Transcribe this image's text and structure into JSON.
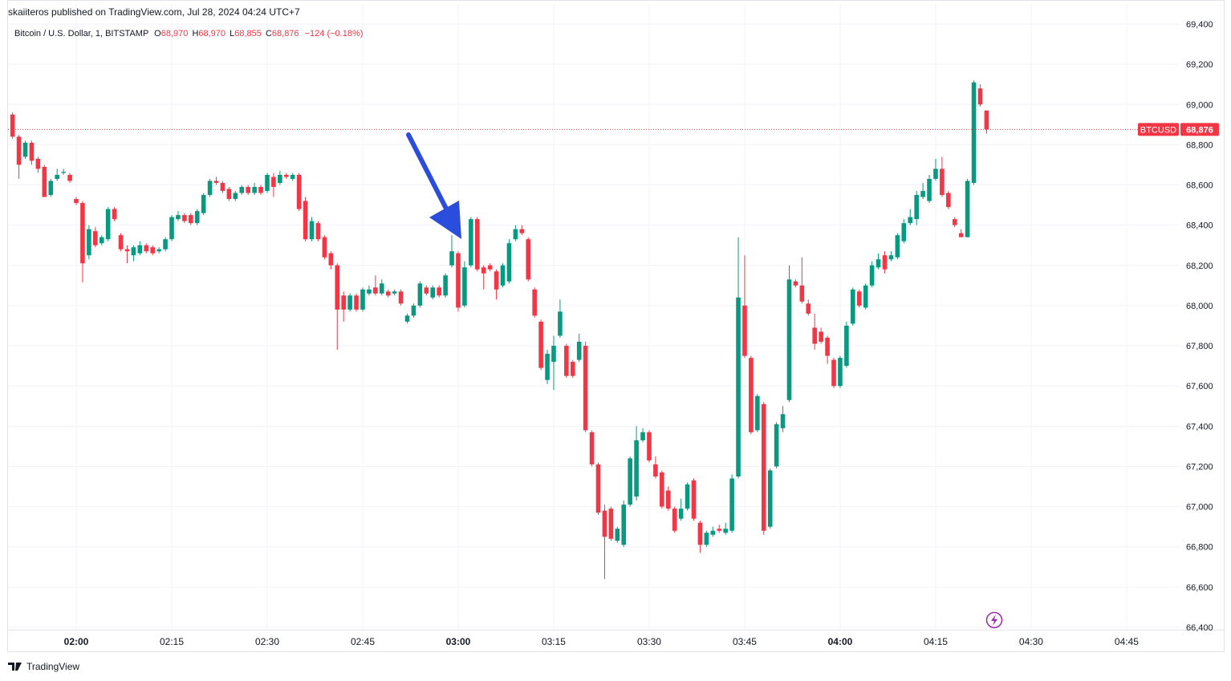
{
  "header": {
    "published": "skaiiteros published on TradingView.com, Jul 28, 2024 04:24 UTC+7"
  },
  "chart_data": {
    "type": "candlestick",
    "symbol": "Bitcoin / U.S. Dollar, 1, BITSTAMP",
    "ohlc_legend": [
      {
        "label": "O",
        "value": "68,970"
      },
      {
        "label": "H",
        "value": "68,970"
      },
      {
        "label": "L",
        "value": "68,855"
      },
      {
        "label": "C",
        "value": "68,876"
      }
    ],
    "change": "−124 (−0.18%)",
    "x": [
      "01:50",
      "01:51",
      "01:52",
      "01:53",
      "01:54",
      "01:55",
      "01:56",
      "01:57",
      "01:58",
      "01:59",
      "02:00",
      "02:01",
      "02:02",
      "02:03",
      "02:04",
      "02:05",
      "02:06",
      "02:07",
      "02:08",
      "02:09",
      "02:10",
      "02:11",
      "02:12",
      "02:13",
      "02:14",
      "02:15",
      "02:16",
      "02:17",
      "02:18",
      "02:19",
      "02:20",
      "02:21",
      "02:22",
      "02:23",
      "02:24",
      "02:25",
      "02:26",
      "02:27",
      "02:28",
      "02:29",
      "02:30",
      "02:31",
      "02:32",
      "02:33",
      "02:34",
      "02:35",
      "02:36",
      "02:37",
      "02:38",
      "02:39",
      "02:40",
      "02:41",
      "02:42",
      "02:43",
      "02:44",
      "02:45",
      "02:46",
      "02:47",
      "02:48",
      "02:49",
      "02:50",
      "02:51",
      "02:52",
      "02:53",
      "02:54",
      "02:55",
      "02:56",
      "02:57",
      "02:58",
      "02:59",
      "03:00",
      "03:01",
      "03:02",
      "03:03",
      "03:04",
      "03:05",
      "03:06",
      "03:07",
      "03:08",
      "03:09",
      "03:10",
      "03:11",
      "03:12",
      "03:13",
      "03:14",
      "03:15",
      "03:16",
      "03:17",
      "03:18",
      "03:19",
      "03:20",
      "03:21",
      "03:22",
      "03:23",
      "03:24",
      "03:25",
      "03:26",
      "03:27",
      "03:28",
      "03:29",
      "03:30",
      "03:31",
      "03:32",
      "03:33",
      "03:34",
      "03:35",
      "03:36",
      "03:37",
      "03:38",
      "03:39",
      "03:40",
      "03:41",
      "03:42",
      "03:43",
      "03:44",
      "03:45",
      "03:46",
      "03:47",
      "03:48",
      "03:49",
      "03:50",
      "03:51",
      "03:52",
      "03:53",
      "03:54",
      "03:55",
      "03:56",
      "03:57",
      "03:58",
      "03:59",
      "04:00",
      "04:01",
      "04:02",
      "04:03",
      "04:04",
      "04:05",
      "04:06",
      "04:07",
      "04:08",
      "04:09",
      "04:10",
      "04:11",
      "04:12",
      "04:13",
      "04:14",
      "04:15",
      "04:16",
      "04:17",
      "04:18",
      "04:19",
      "04:20",
      "04:21",
      "04:22",
      "04:23"
    ],
    "open": [
      68950,
      68840,
      68740,
      68810,
      68730,
      68690,
      68550,
      68630,
      68660,
      68650,
      68530,
      68510,
      68250,
      68370,
      68310,
      68330,
      68480,
      68350,
      68280,
      68250,
      68260,
      68300,
      68290,
      68270,
      68280,
      68330,
      68430,
      68450,
      68450,
      68410,
      68460,
      68550,
      68620,
      68610,
      68580,
      68530,
      68560,
      68590,
      68560,
      68590,
      68570,
      68640,
      68610,
      68650,
      68630,
      68650,
      68520,
      68330,
      68410,
      68340,
      68260,
      68200,
      68050,
      67980,
      68050,
      67980,
      68060,
      68090,
      68060,
      68070,
      68060,
      68070,
      67920,
      67950,
      68000,
      68090,
      68040,
      68090,
      68050,
      68200,
      68260,
      68000,
      68200,
      68430,
      68190,
      68200,
      68170,
      68100,
      68120,
      68330,
      68380,
      68330,
      68080,
      67920,
      67630,
      67720,
      67850,
      67800,
      67720,
      67730,
      67800,
      67370,
      67210,
      66980,
      66990,
      66830,
      66810,
      67010,
      67050,
      67330,
      67370,
      67210,
      67170,
      67080,
      66990,
      66940,
      66990,
      67130,
      66920,
      66810,
      66860,
      66890,
      66870,
      66880,
      67150,
      68000,
      67740,
      67380,
      67510,
      66900,
      67200,
      67390,
      67530,
      68120,
      68100,
      68010,
      67890,
      67870,
      67840,
      67730,
      67600,
      67700,
      67910,
      68070,
      67990,
      68100,
      68190,
      68250,
      68230,
      68240,
      68320,
      68410,
      68430,
      68540,
      68520,
      68630,
      68680,
      68560,
      68430,
      68360,
      68340,
      68610,
      69080,
      68970
    ],
    "high": [
      68960,
      68850,
      68820,
      68820,
      68740,
      68700,
      68630,
      68680,
      68680,
      68660,
      68540,
      68520,
      68400,
      68390,
      68350,
      68490,
      68490,
      68360,
      68300,
      68300,
      68320,
      68310,
      68300,
      68290,
      68340,
      68450,
      68470,
      68460,
      68460,
      68480,
      68560,
      68630,
      68640,
      68620,
      68590,
      68570,
      68600,
      68600,
      68610,
      68600,
      68660,
      68660,
      68670,
      68660,
      68660,
      68660,
      68540,
      68440,
      68420,
      68350,
      68270,
      68210,
      68070,
      68060,
      68060,
      68090,
      68100,
      68150,
      68130,
      68080,
      68080,
      68080,
      67960,
      68010,
      68120,
      68100,
      68100,
      68100,
      68160,
      68350,
      68270,
      68220,
      68440,
      68440,
      68200,
      68210,
      68180,
      68210,
      68330,
      68400,
      68400,
      68340,
      68090,
      67930,
      67780,
      67850,
      68030,
      67810,
      67730,
      67860,
      67820,
      67380,
      67220,
      67010,
      67000,
      66900,
      67030,
      67250,
      67400,
      67390,
      67380,
      67250,
      67180,
      67100,
      67000,
      67040,
      67120,
      67140,
      66930,
      66880,
      66900,
      66910,
      66920,
      67160,
      68340,
      68250,
      67750,
      67560,
      67520,
      67190,
      67420,
      67500,
      68200,
      68130,
      68240,
      68030,
      67960,
      67890,
      67850,
      67740,
      67750,
      67920,
      68090,
      68080,
      68110,
      68220,
      68260,
      68270,
      68270,
      68360,
      68430,
      68480,
      68570,
      68610,
      68650,
      68730,
      68740,
      68570,
      68440,
      68380,
      68630,
      69120,
      69100,
      68970
    ],
    "low": [
      68830,
      68630,
      68730,
      68700,
      68660,
      68540,
      68540,
      68620,
      68650,
      68610,
      68500,
      68115,
      68230,
      68290,
      68300,
      68320,
      68420,
      68270,
      68210,
      68220,
      68250,
      68260,
      68250,
      68260,
      68270,
      68320,
      68420,
      68410,
      68400,
      68400,
      68450,
      68540,
      68600,
      68560,
      68520,
      68520,
      68550,
      68550,
      68550,
      68550,
      68560,
      68540,
      68600,
      68630,
      68620,
      68470,
      68320,
      68320,
      68320,
      68230,
      68180,
      67780,
      67920,
      67970,
      67970,
      67970,
      68050,
      68050,
      68050,
      68040,
      68050,
      68000,
      67910,
      67940,
      67990,
      68050,
      68030,
      68040,
      68040,
      68190,
      67970,
      67990,
      68190,
      68170,
      68080,
      68170,
      68030,
      68090,
      68110,
      68320,
      68350,
      68120,
      67940,
      67680,
      67610,
      67580,
      67840,
      67640,
      67640,
      67720,
      67370,
      67200,
      66960,
      66640,
      66830,
      66820,
      66800,
      67000,
      67030,
      67320,
      67220,
      67140,
      66990,
      66980,
      66870,
      66930,
      66980,
      66930,
      66770,
      66800,
      66850,
      66870,
      66860,
      66870,
      67140,
      67740,
      67360,
      67370,
      66860,
      66890,
      67190,
      67370,
      67520,
      68090,
      68010,
      67950,
      67780,
      67810,
      67710,
      67590,
      67590,
      67690,
      67900,
      67990,
      67980,
      68090,
      68180,
      68160,
      68220,
      68230,
      68310,
      68400,
      68400,
      68530,
      68510,
      68620,
      68540,
      68480,
      68390,
      68340,
      68340,
      68600,
      68990,
      68855
    ],
    "close": [
      68840,
      68700,
      68810,
      68720,
      68680,
      68540,
      68620,
      68650,
      68665,
      68620,
      68510,
      68210,
      68380,
      68300,
      68340,
      68480,
      68430,
      68280,
      68270,
      68290,
      68300,
      68270,
      68260,
      68280,
      68330,
      68440,
      68450,
      68420,
      68410,
      68470,
      68550,
      68620,
      68610,
      68570,
      68530,
      68560,
      68590,
      68560,
      68590,
      68560,
      68650,
      68590,
      68650,
      68640,
      68650,
      68480,
      68330,
      68420,
      68330,
      68240,
      68200,
      67980,
      67980,
      68050,
      67980,
      68080,
      68080,
      68060,
      68110,
      68050,
      68070,
      68010,
      67950,
      68000,
      68110,
      68060,
      68090,
      68050,
      68150,
      68270,
      67990,
      68190,
      68430,
      68180,
      68160,
      68180,
      68080,
      68200,
      68310,
      68380,
      68360,
      68130,
      67950,
      67690,
      67760,
      67800,
      67970,
      67650,
      67650,
      67820,
      67380,
      67210,
      66970,
      66850,
      66840,
      66890,
      67010,
      67240,
      67330,
      67370,
      67230,
      67150,
      67000,
      66990,
      66880,
      66990,
      67110,
      66940,
      66810,
      66870,
      66880,
      66880,
      66890,
      67140,
      68040,
      67750,
      67370,
      67550,
      66880,
      67180,
      67410,
      67460,
      68130,
      68100,
      68020,
      67960,
      67810,
      67820,
      67750,
      67600,
      67740,
      67900,
      68080,
      68000,
      68100,
      68200,
      68230,
      68180,
      68250,
      68350,
      68410,
      68440,
      68550,
      68570,
      68630,
      68680,
      68550,
      68490,
      68400,
      68340,
      68620,
      69110,
      69000,
      68876
    ],
    "up_color": "#089981",
    "down_color": "#f23645",
    "ylim": [
      66400,
      69400
    ],
    "yticks": [
      {
        "value": 66400,
        "label": "66,400"
      },
      {
        "value": 66600,
        "label": "66,600"
      },
      {
        "value": 66800,
        "label": "66,800"
      },
      {
        "value": 67000,
        "label": "67,000"
      },
      {
        "value": 67200,
        "label": "67,200"
      },
      {
        "value": 67400,
        "label": "67,400"
      },
      {
        "value": 67600,
        "label": "67,600"
      },
      {
        "value": 67800,
        "label": "67,800"
      },
      {
        "value": 68000,
        "label": "68,000"
      },
      {
        "value": 68200,
        "label": "68,200"
      },
      {
        "value": 68400,
        "label": "68,400"
      },
      {
        "value": 68600,
        "label": "68,600"
      },
      {
        "value": 68800,
        "label": "68,800"
      },
      {
        "value": 69000,
        "label": "69,000"
      },
      {
        "value": 69200,
        "label": "69,200"
      },
      {
        "value": 69400,
        "label": "69,400"
      }
    ],
    "xticks": [
      "02:00",
      "02:15",
      "02:30",
      "02:45",
      "03:00",
      "03:15",
      "03:30",
      "03:45",
      "04:00",
      "04:15",
      "04:30",
      "04:45"
    ],
    "grid": true,
    "last_price": {
      "name": "BTCUSD",
      "value": 68876,
      "label": "68,876"
    }
  },
  "footer": {
    "brand": "TradingView"
  }
}
